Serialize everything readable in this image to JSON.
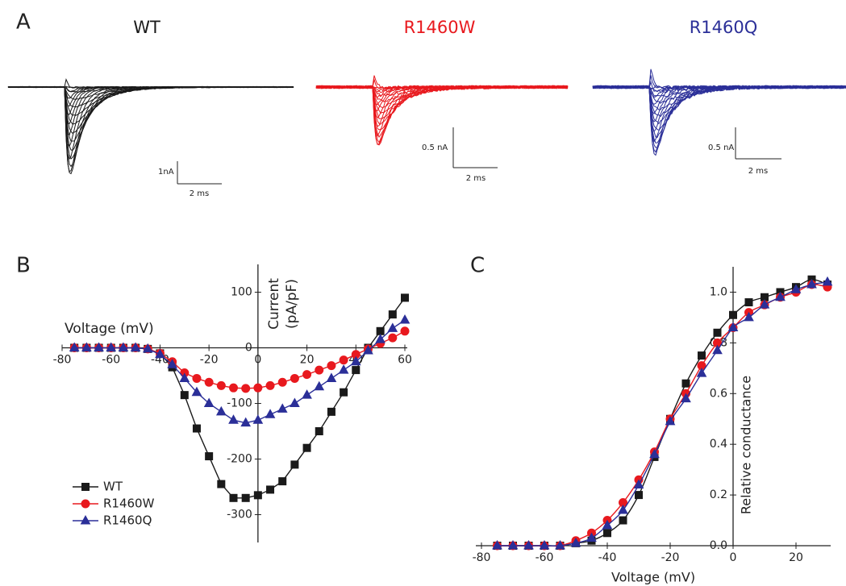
{
  "panels": [
    "A",
    "B",
    "C"
  ],
  "traces": [
    {
      "title": "WT",
      "color": "#1a1a1a",
      "current_scale": "1nA",
      "time_scale": "2 ms"
    },
    {
      "title": "R1460W",
      "color": "#e8191e",
      "current_scale": "0.5 nA",
      "time_scale": "2 ms"
    },
    {
      "title": "R1460Q",
      "color": "#2b2f98",
      "current_scale": "0.5 nA",
      "time_scale": "2 ms"
    }
  ],
  "chart_data": [
    {
      "type": "line",
      "xlabel": "Voltage (mV)",
      "ylabel": [
        "Current",
        "(pA/pF)"
      ],
      "x": [
        -75,
        -70,
        -65,
        -60,
        -55,
        -50,
        -45,
        -40,
        -35,
        -30,
        -25,
        -20,
        -15,
        -10,
        -5,
        0,
        5,
        10,
        15,
        20,
        25,
        30,
        35,
        40,
        45,
        50,
        55,
        60
      ],
      "series": [
        {
          "name": "WT",
          "color": "#1a1a1a",
          "marker": "square",
          "values": [
            0,
            0,
            0,
            0,
            0,
            0,
            -2,
            -10,
            -35,
            -85,
            -145,
            -195,
            -245,
            -270,
            -270,
            -265,
            -255,
            -240,
            -210,
            -180,
            -150,
            -115,
            -80,
            -40,
            0,
            30,
            60,
            90
          ]
        },
        {
          "name": "R1460W",
          "color": "#e8191e",
          "marker": "circle",
          "values": [
            0,
            0,
            0,
            0,
            0,
            0,
            -2,
            -10,
            -25,
            -45,
            -55,
            -62,
            -68,
            -72,
            -73,
            -72,
            -68,
            -62,
            -55,
            -48,
            -40,
            -32,
            -22,
            -12,
            -2,
            8,
            18,
            30
          ]
        },
        {
          "name": "R1460Q",
          "color": "#2b2f98",
          "marker": "triangle",
          "values": [
            0,
            0,
            0,
            0,
            0,
            0,
            -2,
            -12,
            -30,
            -55,
            -80,
            -100,
            -115,
            -130,
            -135,
            -130,
            -120,
            -110,
            -100,
            -85,
            -70,
            -55,
            -40,
            -25,
            -5,
            15,
            35,
            50
          ]
        }
      ],
      "xlim": [
        -80,
        60
      ],
      "xticks": [
        -80,
        -60,
        -40,
        -20,
        0,
        20,
        40,
        60
      ],
      "ylim": [
        -350,
        150
      ],
      "yticks": [
        -300,
        -200,
        -100,
        0,
        100
      ],
      "legend": "lower left"
    },
    {
      "type": "line",
      "smooth": true,
      "xlabel": "Voltage (mV)",
      "ylabel": "Relative conductance",
      "x": [
        -75,
        -70,
        -65,
        -60,
        -55,
        -50,
        -45,
        -40,
        -35,
        -30,
        -25,
        -20,
        -15,
        -10,
        -5,
        0,
        5,
        10,
        15,
        20,
        25,
        30
      ],
      "series": [
        {
          "name": "WT",
          "color": "#1a1a1a",
          "marker": "square",
          "values": [
            0,
            0,
            0,
            0,
            0,
            0.01,
            0.02,
            0.05,
            0.1,
            0.2,
            0.35,
            0.5,
            0.64,
            0.75,
            0.84,
            0.91,
            0.96,
            0.98,
            1.0,
            1.02,
            1.05,
            1.03
          ]
        },
        {
          "name": "R1460W",
          "color": "#e8191e",
          "marker": "circle",
          "values": [
            0,
            0,
            0,
            0,
            0,
            0.02,
            0.05,
            0.1,
            0.17,
            0.26,
            0.37,
            0.5,
            0.6,
            0.71,
            0.8,
            0.86,
            0.92,
            0.95,
            0.98,
            1.0,
            1.03,
            1.02
          ]
        },
        {
          "name": "R1460Q",
          "color": "#2b2f98",
          "marker": "triangle",
          "values": [
            0,
            0,
            0,
            0,
            0,
            0.01,
            0.03,
            0.08,
            0.14,
            0.24,
            0.36,
            0.49,
            0.58,
            0.68,
            0.77,
            0.86,
            0.9,
            0.95,
            0.98,
            1.01,
            1.03,
            1.04
          ]
        }
      ],
      "xlim": [
        -80,
        30
      ],
      "xticks": [
        -80,
        -60,
        -40,
        -20,
        0,
        20
      ],
      "ylim": [
        0,
        1.1
      ],
      "yticks": [
        {
          "value": 0,
          "label": "0.0"
        },
        {
          "value": 0.2,
          "label": "0.2"
        },
        {
          "value": 0.4,
          "label": "0.4"
        },
        {
          "value": 0.6,
          "label": "0.6"
        },
        {
          "value": 0.8,
          "label": "0.8"
        },
        {
          "value": 1.0,
          "label": "1.0"
        }
      ]
    }
  ]
}
